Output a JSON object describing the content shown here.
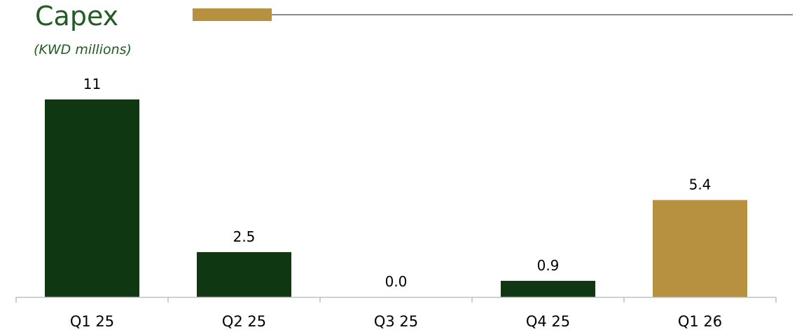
{
  "header": {
    "title": "Capex",
    "subtitle": "(KWD millions)"
  },
  "colors": {
    "title": "#1f5d23",
    "bar_dark": "#0f3812",
    "bar_gold": "#b89140",
    "axis": "#bfbfbf",
    "rule": "#8a8a8a"
  },
  "chart_data": {
    "type": "bar",
    "title": "Capex",
    "subtitle": "(KWD millions)",
    "categories": [
      "Q1 25",
      "Q2 25",
      "Q3 25",
      "Q4 25",
      "Q1 26"
    ],
    "values": [
      11,
      2.5,
      0.0,
      0.9,
      5.4
    ],
    "data_labels": [
      "11",
      "2.5",
      "0.0",
      "0.9",
      "5.4"
    ],
    "bar_colors": [
      "#0f3812",
      "#0f3812",
      "#0f3812",
      "#0f3812",
      "#b89140"
    ],
    "ylim": [
      0,
      11
    ],
    "grid": false,
    "legend": "none"
  }
}
